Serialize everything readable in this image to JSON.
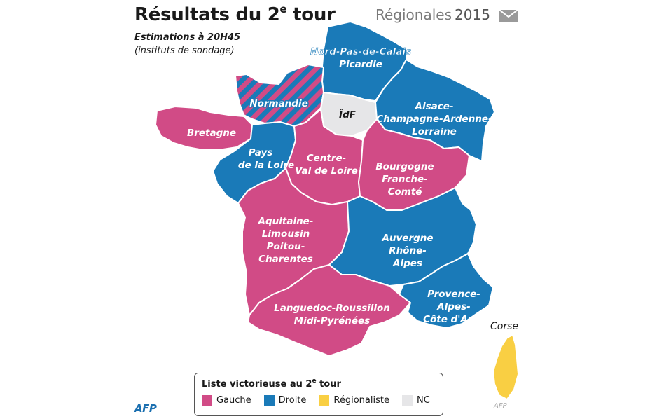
{
  "header": {
    "title_main": "Résultats du 2",
    "title_sup": "e",
    "title_end": " tour",
    "subtitle_line1": "Estimations à 20H45",
    "subtitle_line2": "(instituts de sondage)",
    "series_label": "Régionales",
    "series_year": "2015",
    "icon": "envelope-icon"
  },
  "colors": {
    "gauche": "#d14b86",
    "droite": "#1a7ab8",
    "regionaliste": "#f9cf43",
    "nc": "#e6e6e8",
    "border": "#ffffff"
  },
  "regions": {
    "npc": {
      "label1": "Nord-Pas-de-Calais",
      "label2": "Picardie",
      "result": "droite"
    },
    "normandie": {
      "label1": "Normandie",
      "result": "gauche/droite"
    },
    "idf": {
      "label1": "ÎdF",
      "result": "nc"
    },
    "acal": {
      "label1": "Alsace-",
      "label2": "Champagne-Ardenne-",
      "label3": "Lorraine",
      "result": "droite"
    },
    "bretagne": {
      "label1": "Bretagne",
      "result": "gauche"
    },
    "pdl": {
      "label1": "Pays",
      "label2": "de la Loire",
      "result": "droite"
    },
    "cvl": {
      "label1": "Centre-",
      "label2": "Val de Loire",
      "result": "gauche"
    },
    "bfc": {
      "label1": "Bourgogne",
      "label2": "Franche-",
      "label3": "Comté",
      "result": "gauche"
    },
    "alpc": {
      "label1": "Aquitaine-",
      "label2": "Limousin",
      "label3": "Poitou-",
      "label4": "Charentes",
      "result": "gauche"
    },
    "ara": {
      "label1": "Auvergne",
      "label2": "Rhône-",
      "label3": "Alpes",
      "result": "droite"
    },
    "lrmp": {
      "label1": "Languedoc-Roussillon",
      "label2": "Midi-Pyrénées",
      "result": "gauche"
    },
    "paca": {
      "label1": "Provence-",
      "label2": "Alpes-",
      "label3": "Côte d'Azur",
      "result": "droite"
    },
    "corse": {
      "label1": "Corse",
      "result": "regionaliste"
    }
  },
  "legend": {
    "title_main": "Liste victorieuse au 2",
    "title_sup": "e",
    "title_end": " tour",
    "items": [
      {
        "label": "Gauche",
        "color": "#d14b86"
      },
      {
        "label": "Droite",
        "color": "#1a7ab8"
      },
      {
        "label": "Régionaliste",
        "color": "#f9cf43"
      },
      {
        "label": "NC",
        "color": "#e6e6e8"
      }
    ]
  },
  "credit": "AFP",
  "credit_small": "AFP"
}
